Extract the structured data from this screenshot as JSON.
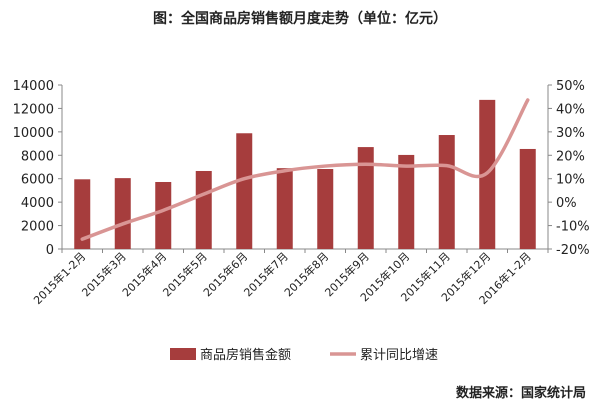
{
  "chart_data": {
    "type": "bar",
    "title": "图：全国商品房销售额月度走势（单位：亿元）",
    "source": "数据来源：国家统计局",
    "categories": [
      "2015年1-2月",
      "2015年3月",
      "2015年4月",
      "2015年5月",
      "2015年6月",
      "2015年7月",
      "2015年8月",
      "2015年9月",
      "2015年10月",
      "2015年11月",
      "2015年12月",
      "2016年1-2月"
    ],
    "series": [
      {
        "name": "商品房销售金额",
        "type": "bar",
        "axis": "left",
        "color": "#A63D3D",
        "values": [
          5950,
          6050,
          5720,
          6660,
          9880,
          6900,
          6830,
          8700,
          8030,
          9730,
          12730,
          8540
        ]
      },
      {
        "name": "累计同比增速",
        "type": "line",
        "axis": "right",
        "color": "#D99594",
        "values": [
          -15.8,
          -9.3,
          -3.5,
          3.4,
          10.0,
          13.4,
          15.4,
          16.2,
          15.4,
          15.6,
          12.5,
          43.6
        ]
      }
    ],
    "left_axis": {
      "ylim": [
        0,
        14000
      ],
      "ticks": [
        "0",
        "2000",
        "4000",
        "6000",
        "8000",
        "10000",
        "12000",
        "14000"
      ]
    },
    "right_axis": {
      "ylim": [
        -20,
        50
      ],
      "ticks": [
        "-20%",
        "-10%",
        "0%",
        "10%",
        "20%",
        "30%",
        "40%",
        "50%"
      ]
    },
    "legend": "bottom",
    "grid": false
  }
}
